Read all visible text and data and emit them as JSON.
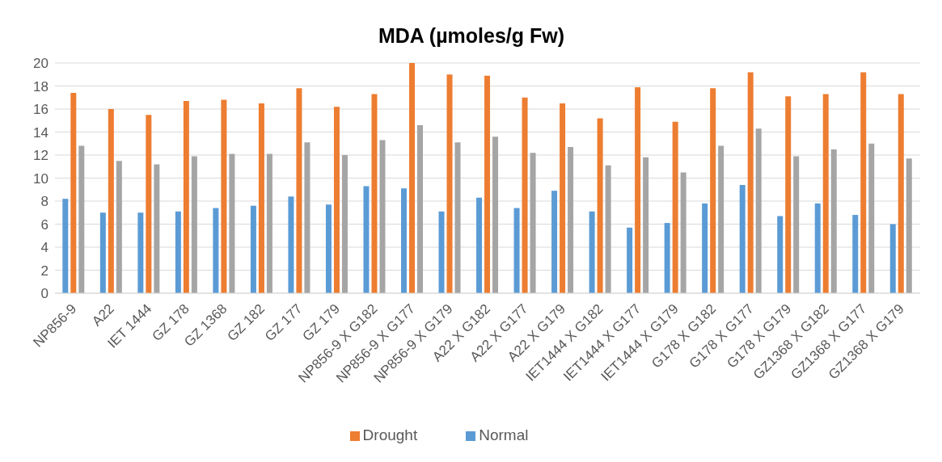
{
  "chart_data": {
    "type": "bar",
    "title": "MDA (µmoles/g  Fw)",
    "categories": [
      "NP856-9",
      "A22",
      "IET 1444",
      "GZ 178",
      "GZ 1368",
      "GZ 182",
      "GZ 177",
      "GZ 179",
      "NP856-9 X G182",
      "NP856-9 X G177",
      "NP856-9 X G179",
      "A22 X G182",
      "A22 X G177",
      "A22 X G179",
      "IET1444 X G182",
      "IET1444 X G177",
      "IET1444 X G179",
      "G178 X G182",
      "G178 X G177",
      "G178 X G179",
      "GZ1368 X G182",
      "GZ1368 X G177",
      "GZ1368 X G179"
    ],
    "series": [
      {
        "name": "Normal",
        "color": "#5b9bd5",
        "values": [
          8.2,
          7.0,
          7.0,
          7.1,
          7.4,
          7.6,
          8.4,
          7.7,
          9.3,
          9.1,
          7.1,
          8.3,
          7.4,
          8.9,
          7.1,
          5.7,
          6.1,
          7.8,
          9.4,
          6.7,
          7.8,
          6.8,
          6.0
        ]
      },
      {
        "name": "Drought",
        "color": "#ed7d31",
        "values": [
          17.4,
          16.0,
          15.5,
          16.7,
          16.8,
          16.5,
          17.8,
          16.2,
          17.3,
          20.0,
          19.0,
          18.9,
          17.0,
          16.5,
          15.2,
          17.9,
          14.9,
          17.8,
          19.2,
          17.1,
          17.3,
          19.2,
          17.3
        ]
      },
      {
        "color": "#a5a5a5",
        "values": [
          12.8,
          11.5,
          11.2,
          11.9,
          12.1,
          12.1,
          13.1,
          12.0,
          13.3,
          14.6,
          13.1,
          13.6,
          12.2,
          12.7,
          11.1,
          11.8,
          10.5,
          12.8,
          14.3,
          11.9,
          12.5,
          13.0,
          11.7
        ]
      }
    ],
    "ylim": [
      0,
      20
    ],
    "yticks": [
      0,
      2,
      4,
      6,
      8,
      10,
      12,
      14,
      16,
      18,
      20
    ],
    "grid": "y",
    "legend": "bottom"
  }
}
